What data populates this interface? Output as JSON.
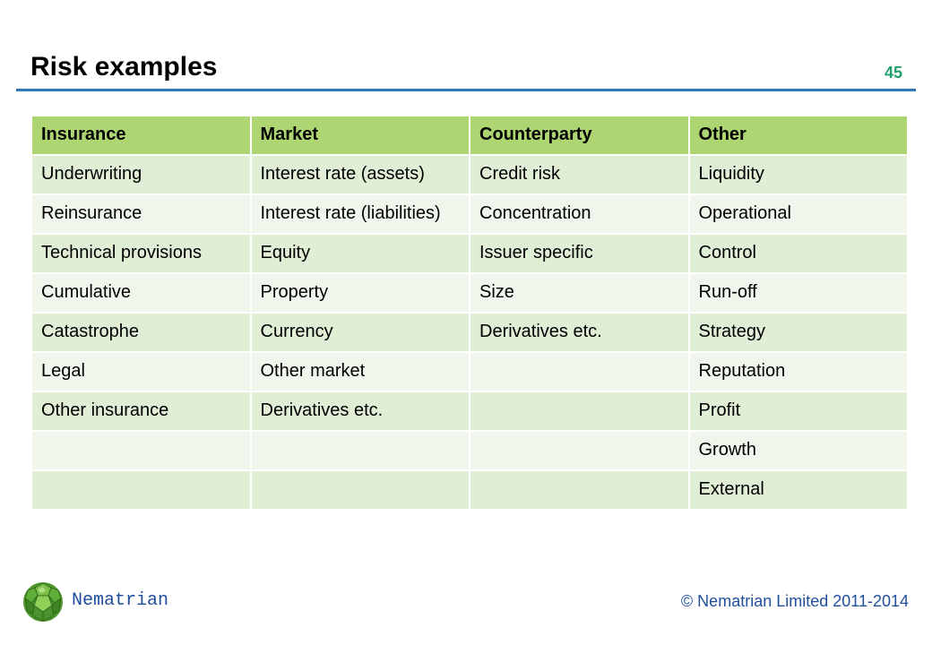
{
  "slide": {
    "title": "Risk examples",
    "number": "45"
  },
  "table": {
    "headers": [
      "Insurance",
      "Market",
      "Counterparty",
      "Other"
    ],
    "rows": [
      [
        "Underwriting",
        "Interest rate (assets)",
        "Credit risk",
        "Liquidity"
      ],
      [
        "Reinsurance",
        "Interest rate (liabilities)",
        "Concentration",
        "Operational"
      ],
      [
        "Technical provisions",
        "Equity",
        "Issuer specific",
        "Control"
      ],
      [
        "Cumulative",
        "Property",
        "Size",
        "Run-off"
      ],
      [
        "Catastrophe",
        "Currency",
        "Derivatives  etc.",
        "Strategy"
      ],
      [
        "Legal",
        "Other market",
        "",
        "Reputation"
      ],
      [
        "Other insurance",
        "Derivatives  etc.",
        "",
        "Profit"
      ],
      [
        "",
        "",
        "",
        "Growth"
      ],
      [
        "",
        "",
        "",
        "External"
      ]
    ]
  },
  "footer": {
    "brand": "Nematrian",
    "copyright": "© Nematrian Limited 2011-2014",
    "logo_icon": "green-polyhedron-icon"
  },
  "colors": {
    "header_fill": "#add572",
    "row_fill_dark": "#e1eed6",
    "row_fill_light": "#f0f6ec",
    "title_rule": "#2f78b9",
    "slide_number": "#22a06b",
    "footer_text": "#1f4e9c"
  }
}
